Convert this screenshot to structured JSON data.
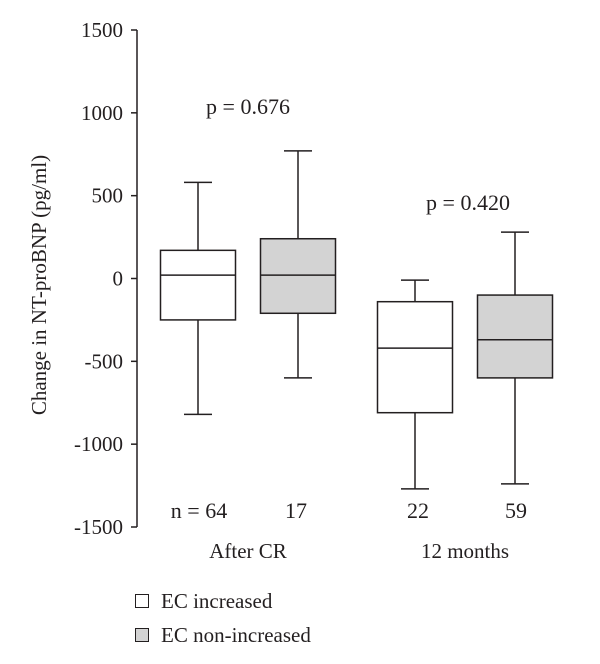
{
  "chart_data": {
    "type": "box",
    "ylabel": "Change in NT-proBNP (pg/ml)",
    "ylim": [
      -1500,
      1500
    ],
    "yticks": [
      1500,
      1000,
      500,
      0,
      -500,
      -1000,
      -1500
    ],
    "ytick_labels": [
      "1500",
      "1000",
      "500",
      "0",
      "-500",
      "-1000",
      "-1500"
    ],
    "groups": [
      {
        "label": "After CR",
        "p_value": "p = 0.676",
        "boxes": [
          {
            "series": "EC increased",
            "n": "n = 64",
            "whisker_low": -820,
            "q1": -250,
            "median": 20,
            "q3": 170,
            "whisker_high": 580
          },
          {
            "series": "EC non-increased",
            "n": "17",
            "whisker_low": -600,
            "q1": -210,
            "median": 20,
            "q3": 240,
            "whisker_high": 770
          }
        ]
      },
      {
        "label": "12 months",
        "p_value": "p = 0.420",
        "boxes": [
          {
            "series": "EC increased",
            "n": "22",
            "whisker_low": -1270,
            "q1": -810,
            "median": -420,
            "q3": -140,
            "whisker_high": -10
          },
          {
            "series": "EC non-increased",
            "n": "59",
            "whisker_low": -1240,
            "q1": -600,
            "median": -370,
            "q3": -100,
            "whisker_high": 280
          }
        ]
      }
    ],
    "legend": [
      {
        "label": "EC increased",
        "color": "#ffffff"
      },
      {
        "label": "EC non-increased",
        "color": "#d3d3d3"
      }
    ]
  }
}
